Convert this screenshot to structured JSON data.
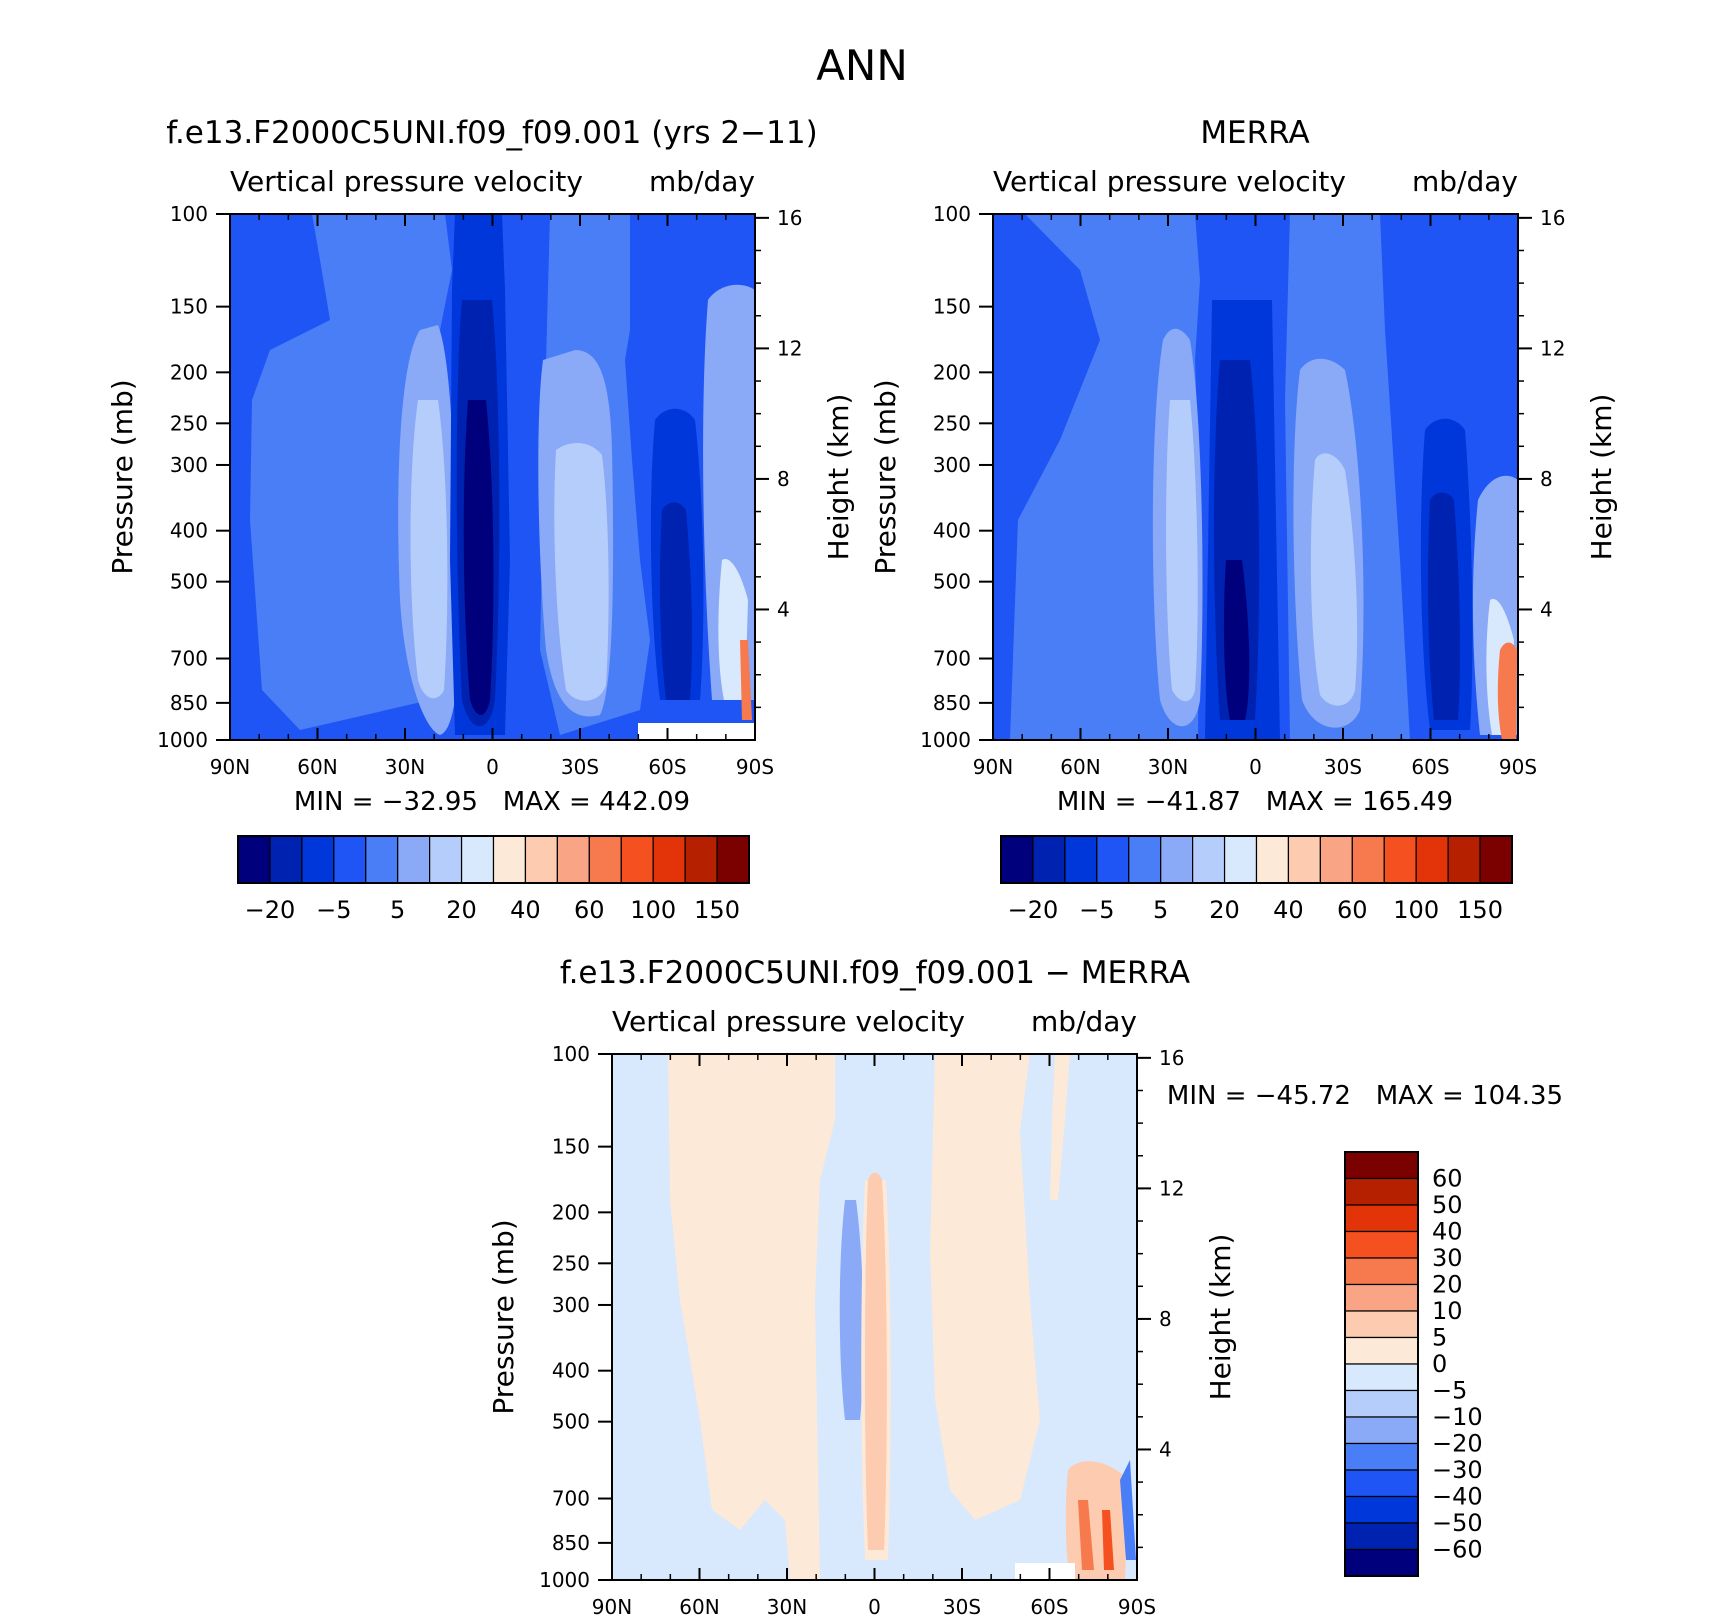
{
  "figure": {
    "title": "ANN"
  },
  "colors": {
    "abs_levels": [
      "#00007d",
      "#0022b0",
      "#0037da",
      "#1f55f5",
      "#4a7ef7",
      "#8aa9f7",
      "#b5cdfa",
      "#d8e8fd",
      "#fde9d8",
      "#fccbb0",
      "#f9a484",
      "#f77a4e",
      "#f5501f",
      "#e23408",
      "#b52100",
      "#7b0000"
    ],
    "diff_levels": [
      "#00007d",
      "#0022b0",
      "#0037da",
      "#1f55f5",
      "#4a7ef7",
      "#8aa9f7",
      "#b5cdfa",
      "#d8e8fd",
      "#fde9d8",
      "#fccbb0",
      "#f9a484",
      "#f77a4e",
      "#f5501f",
      "#e23408",
      "#b52100",
      "#7b0000"
    ]
  },
  "chart_data": [
    {
      "type": "heatmap",
      "id": "model",
      "title": "f.e13.F2000C5UNI.f09_f09.001 (yrs 2−11)",
      "left_label": "Vertical pressure velocity",
      "right_label": "mb/day",
      "xlabel": "",
      "ylabel": "Pressure (mb)",
      "ylabel_right": "Height (km)",
      "x_ticks": [
        "90N",
        "60N",
        "30N",
        "0",
        "30S",
        "60S",
        "90S"
      ],
      "y_ticks": [
        "100",
        "150",
        "200",
        "250",
        "300",
        "400",
        "500",
        "700",
        "850",
        "1000"
      ],
      "y2_ticks": [
        "16",
        "12",
        "8",
        "4"
      ],
      "stats": "MIN = −32.95   MAX = 442.09",
      "colorbar_labels": [
        "−20",
        "−5",
        "5",
        "20",
        "40",
        "60",
        "100",
        "150"
      ],
      "levels": [
        -20,
        -10,
        -5,
        0,
        5,
        10,
        20,
        30,
        40,
        50,
        60,
        80,
        100,
        120,
        150
      ]
    },
    {
      "type": "heatmap",
      "id": "obs",
      "title": "MERRA",
      "left_label": "Vertical pressure velocity",
      "right_label": "mb/day",
      "xlabel": "",
      "ylabel": "Pressure (mb)",
      "ylabel_right": "Height (km)",
      "x_ticks": [
        "90N",
        "60N",
        "30N",
        "0",
        "30S",
        "60S",
        "90S"
      ],
      "y_ticks": [
        "100",
        "150",
        "200",
        "250",
        "300",
        "400",
        "500",
        "700",
        "850",
        "1000"
      ],
      "y2_ticks": [
        "16",
        "12",
        "8",
        "4"
      ],
      "stats": "MIN = −41.87   MAX = 165.49",
      "colorbar_labels": [
        "−20",
        "−5",
        "5",
        "20",
        "40",
        "60",
        "100",
        "150"
      ],
      "levels": [
        -20,
        -10,
        -5,
        0,
        5,
        10,
        20,
        30,
        40,
        50,
        60,
        80,
        100,
        120,
        150
      ]
    },
    {
      "type": "heatmap",
      "id": "diff",
      "title": "f.e13.F2000C5UNI.f09_f09.001 − MERRA",
      "left_label": "Vertical pressure velocity",
      "right_label": "mb/day",
      "xlabel": "",
      "ylabel": "Pressure (mb)",
      "ylabel_right": "Height (km)",
      "x_ticks": [
        "90N",
        "60N",
        "30N",
        "0",
        "30S",
        "60S",
        "90S"
      ],
      "y_ticks": [
        "100",
        "150",
        "200",
        "250",
        "300",
        "400",
        "500",
        "700",
        "850",
        "1000"
      ],
      "y2_ticks": [
        "16",
        "12",
        "8",
        "4"
      ],
      "stats": "MIN = −45.72   MAX = 104.35",
      "colorbar_labels": [
        "60",
        "50",
        "40",
        "30",
        "20",
        "10",
        "5",
        "0",
        "−5",
        "−10",
        "−20",
        "−30",
        "−40",
        "−50",
        "−60"
      ],
      "levels": [
        -60,
        -50,
        -40,
        -30,
        -20,
        -10,
        -5,
        0,
        5,
        10,
        20,
        30,
        40,
        50,
        60
      ]
    }
  ]
}
